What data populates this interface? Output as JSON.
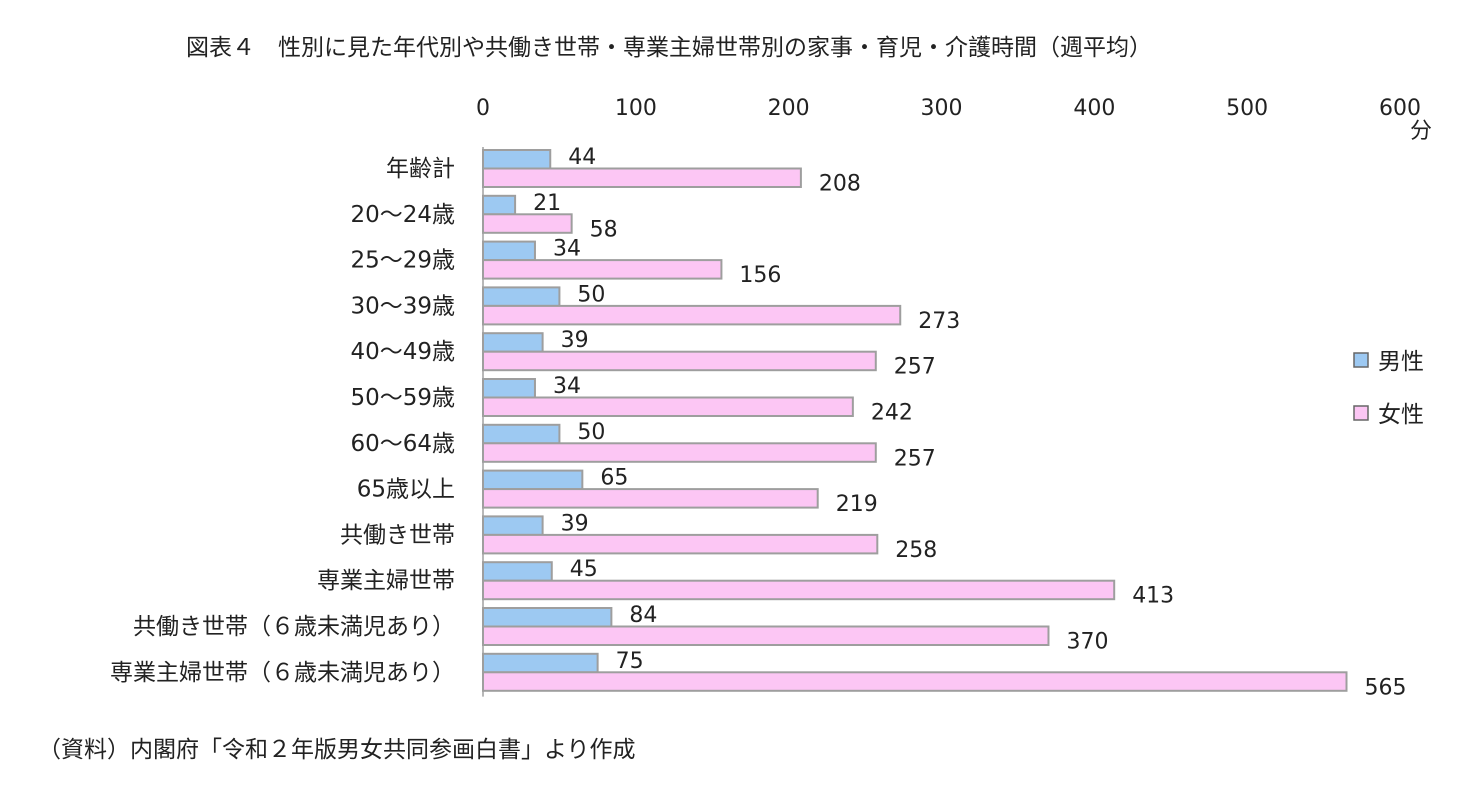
{
  "title": "図表４　性別に見た年代別や共働き世帯・専業主婦世帯別の家事・育児・介護時間（週平均）",
  "source": "（資料）内閣府「令和２年版男女共同参画白書」より作成",
  "colors": {
    "male": "#9dc9f2",
    "female": "#fcc6f4",
    "bar_border": "#9e9e9e"
  },
  "chart_data": {
    "type": "bar",
    "orientation": "horizontal",
    "title": "図表４　性別に見た年代別や共働き世帯・専業主婦世帯別の家事・育児・介護時間（週平均）",
    "xlabel": "",
    "ylabel": "",
    "unit": "分",
    "xlim": [
      0,
      600
    ],
    "xticks": [
      0,
      100,
      200,
      300,
      400,
      500,
      600
    ],
    "axis_position": "top",
    "grid": false,
    "legend_position": "right",
    "categories": [
      "年齢計",
      "20～24歳",
      "25～29歳",
      "30～39歳",
      "40～49歳",
      "50～59歳",
      "60～64歳",
      "65歳以上",
      "共働き世帯",
      "専業主婦世帯",
      "共働き世帯（６歳未満児あり）",
      "専業主婦世帯（６歳未満児あり）"
    ],
    "series": [
      {
        "name": "男性",
        "color": "#9dc9f2",
        "values": [
          44,
          21,
          34,
          50,
          39,
          34,
          50,
          65,
          39,
          45,
          84,
          75
        ]
      },
      {
        "name": "女性",
        "color": "#fcc6f4",
        "values": [
          208,
          58,
          156,
          273,
          257,
          242,
          257,
          219,
          258,
          413,
          370,
          565
        ]
      }
    ]
  }
}
